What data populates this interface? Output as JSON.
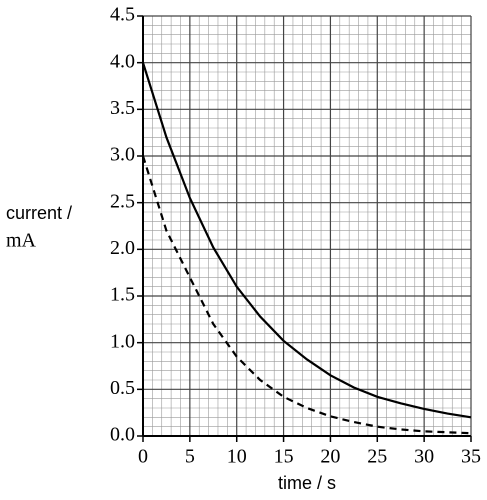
{
  "chart_data": {
    "type": "line",
    "ylabel": [
      "current /",
      "mA"
    ],
    "xlabel": "time / s",
    "x": [
      0,
      2.5,
      5,
      7.5,
      10,
      12.5,
      15,
      17.5,
      20,
      22.5,
      25,
      27.5,
      30,
      32.5,
      35
    ],
    "series": [
      {
        "color": "#000000",
        "dashed": false,
        "values": [
          4.0,
          3.2,
          2.55,
          2.02,
          1.6,
          1.28,
          1.02,
          0.82,
          0.65,
          0.52,
          0.42,
          0.35,
          0.29,
          0.24,
          0.2
        ]
      },
      {
        "color": "#000000",
        "dashed": true,
        "values": [
          3.0,
          2.2,
          1.7,
          1.2,
          0.85,
          0.6,
          0.42,
          0.3,
          0.21,
          0.15,
          0.1,
          0.07,
          0.05,
          0.04,
          0.03
        ]
      }
    ],
    "xlim": [
      0,
      35
    ],
    "xticks": [
      0,
      5,
      10,
      15,
      20,
      25,
      30,
      35
    ],
    "ylim": [
      0,
      4.5
    ],
    "yticks": [
      {
        "value": 0,
        "label": "0.0"
      },
      0.5,
      {
        "value": 1,
        "label": "1.0"
      },
      1.5,
      {
        "value": 2,
        "label": "2.0"
      },
      2.5,
      {
        "value": 3,
        "label": "3.0"
      },
      3.5,
      {
        "value": 4,
        "label": "4.0"
      },
      4.5
    ],
    "grid": true,
    "minor_divisions": 5
  }
}
